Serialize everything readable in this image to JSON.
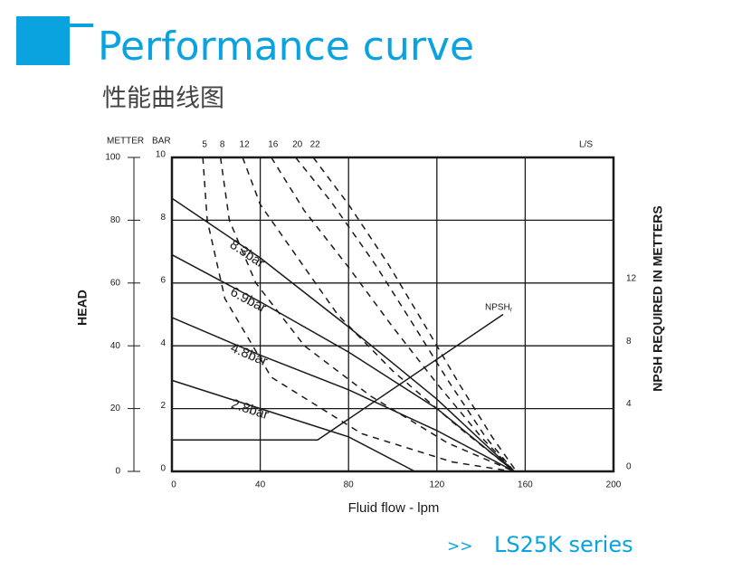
{
  "header": {
    "title": "Performance curve",
    "subtitle": "性能曲线图"
  },
  "chart_data": {
    "type": "line",
    "x_label": "Fluid flow - lpm",
    "y_label": "HEAD",
    "y_unit_m": "METTER",
    "y_unit_bar": "BAR",
    "y2_label": "NPSH REQUIRED IN METTERS",
    "top_unit": "L/S",
    "xlim": [
      0,
      200
    ],
    "xticks": [
      0,
      40,
      80,
      120,
      160,
      200
    ],
    "ylim": [
      0,
      10
    ],
    "yticks": [
      0,
      2,
      4,
      6,
      8,
      10
    ],
    "ylim_head_m": [
      0,
      100
    ],
    "yticks_head_m": [
      0,
      20,
      40,
      60,
      80,
      100
    ],
    "y2lim": [
      0,
      20
    ],
    "y2ticks": [
      0,
      4,
      8,
      12
    ],
    "grid": true,
    "series": [
      {
        "name": "8.3bar",
        "style": "solid",
        "color": "#1a1a1a",
        "x": [
          0,
          40,
          80,
          120,
          155
        ],
        "values": [
          8.7,
          6.8,
          4.6,
          2.3,
          0
        ]
      },
      {
        "name": "6.9bar",
        "style": "solid",
        "color": "#1a1a1a",
        "x": [
          0,
          40,
          80,
          120,
          155
        ],
        "values": [
          6.9,
          5.4,
          3.8,
          2.0,
          0
        ]
      },
      {
        "name": "4.8bar",
        "style": "solid",
        "color": "#1a1a1a",
        "x": [
          0,
          40,
          80,
          120,
          155
        ],
        "values": [
          4.9,
          3.7,
          2.6,
          1.3,
          0
        ]
      },
      {
        "name": "2.8bar",
        "style": "solid",
        "color": "#1a1a1a",
        "x": [
          0,
          40,
          80,
          110
        ],
        "values": [
          2.9,
          2.0,
          1.1,
          0
        ]
      },
      {
        "name": "5",
        "style": "dashed",
        "color": "#1a1a1a",
        "x": [
          14,
          16,
          24,
          45,
          86,
          127,
          154
        ],
        "values": [
          10,
          8,
          5.5,
          3,
          1.2,
          0.3,
          0
        ]
      },
      {
        "name": "8",
        "style": "dashed",
        "color": "#1a1a1a",
        "x": [
          22,
          26,
          38,
          60,
          90,
          125,
          155
        ],
        "values": [
          10,
          8,
          6,
          4,
          2.4,
          0.9,
          0
        ]
      },
      {
        "name": "12",
        "style": "dashed",
        "color": "#1a1a1a",
        "x": [
          32,
          40,
          55,
          75,
          100,
          130,
          155
        ],
        "values": [
          10,
          8.5,
          7,
          5,
          3.2,
          1.4,
          0
        ]
      },
      {
        "name": "16",
        "style": "dashed",
        "color": "#1a1a1a",
        "x": [
          45,
          60,
          80,
          100,
          120,
          140,
          155
        ],
        "values": [
          10,
          8.3,
          6.5,
          4.6,
          2.8,
          1.1,
          0
        ]
      },
      {
        "name": "20",
        "style": "dashed",
        "color": "#1a1a1a",
        "x": [
          56,
          72,
          92,
          110,
          125,
          142,
          155
        ],
        "values": [
          10,
          8.6,
          6.6,
          4.6,
          2.9,
          1.1,
          0
        ]
      },
      {
        "name": "22",
        "style": "dashed",
        "color": "#1a1a1a",
        "x": [
          64,
          80,
          98,
          115,
          130,
          145,
          156
        ],
        "values": [
          10,
          8.5,
          6.6,
          4.6,
          2.8,
          1.1,
          0
        ]
      },
      {
        "name": "NPSH",
        "subscript": "r",
        "style": "solid",
        "color": "#1a1a1a",
        "axis": "y2",
        "x": [
          0,
          66,
          150
        ],
        "values": [
          2,
          2,
          10
        ]
      }
    ]
  },
  "footer": {
    "marker": ">>",
    "series": "LS25K series"
  }
}
